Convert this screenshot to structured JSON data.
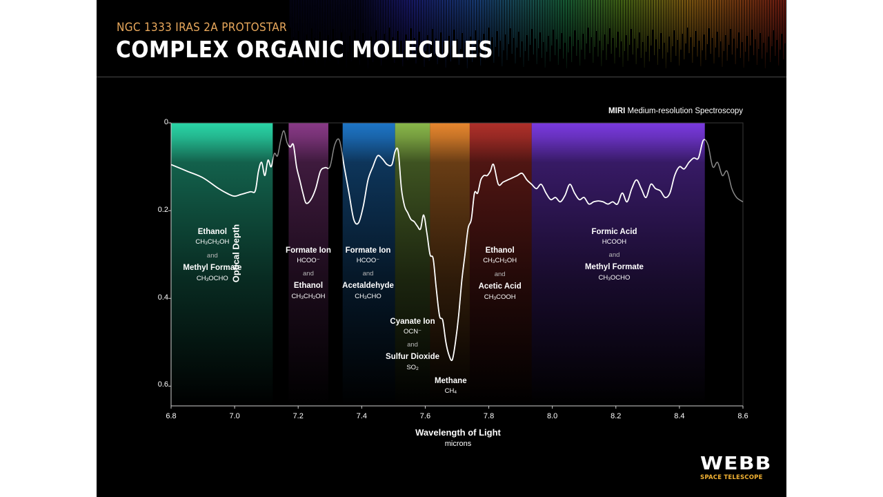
{
  "header": {
    "subtitle": "NGC 1333 IRAS 2A PROTOSTAR",
    "title": "COMPLEX ORGANIC MOLECULES"
  },
  "instrument": {
    "bold": "MIRI",
    "text": " Medium-resolution Spectroscopy"
  },
  "logo": {
    "word": "WEBB",
    "sub": "SPACE TELESCOPE",
    "sub_color": "#f2b233"
  },
  "colors": {
    "background": "#000000",
    "spectrum_line": "#ffffff",
    "spectrum_line_faded": "#8a8a8a",
    "subtitle": "#e8a85c"
  },
  "chart_data": {
    "type": "line",
    "title": "COMPLEX ORGANIC MOLECULES",
    "xlabel": "Wavelength of Light",
    "xunits": "microns",
    "ylabel": "Optical Depth",
    "xlim": [
      6.8,
      8.6
    ],
    "ylim": [
      0,
      0.645
    ],
    "y_inverted": true,
    "x_ticks": [
      "6.8",
      "7.0",
      "7.2",
      "7.4",
      "7.6",
      "7.8",
      "8.0",
      "8.2",
      "8.4",
      "8.6"
    ],
    "y_ticks": [
      "0",
      "0.2",
      "0.4",
      "0.6"
    ],
    "series": [
      {
        "name": "Optical Depth",
        "x": [
          6.8,
          6.85,
          6.9,
          6.95,
          6.98,
          7.0,
          7.02,
          7.05,
          7.065,
          7.075,
          7.085,
          7.095,
          7.105,
          7.115,
          7.125,
          7.135,
          7.145,
          7.155,
          7.165,
          7.175,
          7.185,
          7.195,
          7.205,
          7.215,
          7.225,
          7.24,
          7.255,
          7.27,
          7.285,
          7.3,
          7.315,
          7.33,
          7.345,
          7.36,
          7.375,
          7.39,
          7.405,
          7.42,
          7.435,
          7.45,
          7.465,
          7.48,
          7.495,
          7.505,
          7.515,
          7.525,
          7.535,
          7.545,
          7.555,
          7.565,
          7.575,
          7.585,
          7.595,
          7.605,
          7.615,
          7.625,
          7.635,
          7.645,
          7.655,
          7.665,
          7.675,
          7.685,
          7.695,
          7.705,
          7.715,
          7.725,
          7.735,
          7.745,
          7.755,
          7.765,
          7.775,
          7.785,
          7.795,
          7.805,
          7.815,
          7.83,
          7.845,
          7.86,
          7.875,
          7.89,
          7.905,
          7.92,
          7.935,
          7.95,
          7.965,
          7.98,
          7.995,
          8.01,
          8.025,
          8.04,
          8.055,
          8.07,
          8.085,
          8.1,
          8.115,
          8.13,
          8.145,
          8.16,
          8.175,
          8.19,
          8.205,
          8.22,
          8.235,
          8.25,
          8.265,
          8.28,
          8.295,
          8.31,
          8.325,
          8.34,
          8.355,
          8.37,
          8.385,
          8.4,
          8.415,
          8.43,
          8.445,
          8.46,
          8.475,
          8.49,
          8.505,
          8.52,
          8.535,
          8.55,
          8.565,
          8.58,
          8.6
        ],
        "values": [
          0.095,
          0.11,
          0.125,
          0.15,
          0.162,
          0.167,
          0.163,
          0.157,
          0.155,
          0.11,
          0.09,
          0.12,
          0.085,
          0.1,
          0.07,
          0.075,
          0.04,
          0.018,
          0.045,
          0.055,
          0.05,
          0.1,
          0.13,
          0.16,
          0.183,
          0.175,
          0.15,
          0.11,
          0.102,
          0.1,
          0.05,
          0.04,
          0.1,
          0.16,
          0.22,
          0.228,
          0.19,
          0.13,
          0.1,
          0.075,
          0.082,
          0.095,
          0.095,
          0.065,
          0.065,
          0.15,
          0.19,
          0.205,
          0.22,
          0.225,
          0.235,
          0.242,
          0.21,
          0.25,
          0.3,
          0.31,
          0.38,
          0.44,
          0.45,
          0.5,
          0.53,
          0.54,
          0.5,
          0.44,
          0.36,
          0.3,
          0.24,
          0.22,
          0.16,
          0.16,
          0.13,
          0.12,
          0.12,
          0.11,
          0.095,
          0.14,
          0.135,
          0.13,
          0.125,
          0.12,
          0.115,
          0.13,
          0.14,
          0.15,
          0.14,
          0.16,
          0.175,
          0.17,
          0.18,
          0.165,
          0.14,
          0.16,
          0.175,
          0.17,
          0.185,
          0.18,
          0.178,
          0.18,
          0.185,
          0.18,
          0.185,
          0.16,
          0.18,
          0.15,
          0.13,
          0.15,
          0.17,
          0.14,
          0.15,
          0.155,
          0.17,
          0.16,
          0.12,
          0.1,
          0.105,
          0.09,
          0.08,
          0.08,
          0.04,
          0.05,
          0.1,
          0.09,
          0.12,
          0.11,
          0.15,
          0.17,
          0.18
        ]
      }
    ],
    "bands": [
      {
        "x0": 6.8,
        "x1": 7.12,
        "color": "#2ad7a8",
        "label_x": 6.93,
        "label_y": 0.24,
        "molecules": [
          {
            "name": "Ethanol",
            "formula": [
              [
                "CH",
                "3"
              ],
              [
                "CH",
                "2"
              ],
              [
                "OH",
                ""
              ]
            ]
          },
          {
            "name": "Methyl Formate",
            "formula": [
              [
                "CH",
                "3"
              ],
              [
                "OCHO",
                ""
              ]
            ]
          }
        ]
      },
      {
        "x0": 7.17,
        "x1": 7.295,
        "color": "#8a3a88",
        "label_x": 7.232,
        "label_y": 0.283,
        "molecules": [
          {
            "name": "Formate Ion",
            "formula": [
              [
                "HCOO⁻",
                ""
              ]
            ]
          },
          {
            "name": "Ethanol",
            "formula": [
              [
                "CH",
                "3"
              ],
              [
                "CH",
                "2"
              ],
              [
                "OH",
                ""
              ]
            ]
          }
        ]
      },
      {
        "x0": 7.34,
        "x1": 7.505,
        "color": "#1e76c8",
        "label_x": 7.42,
        "label_y": 0.283,
        "molecules": [
          {
            "name": "Formate Ion",
            "formula": [
              [
                "HCOO⁻",
                ""
              ]
            ]
          },
          {
            "name": "Acetaldehyde",
            "formula": [
              [
                "CH",
                "3"
              ],
              [
                "CHO",
                ""
              ]
            ]
          }
        ]
      },
      {
        "x0": 7.505,
        "x1": 7.615,
        "color": "#8ab84a",
        "label_x": 7.56,
        "label_y": 0.445,
        "molecules": [
          {
            "name": "Cyanate Ion",
            "formula": [
              [
                "OCN⁻",
                ""
              ]
            ]
          },
          {
            "name": "Sulfur Dioxide",
            "formula": [
              [
                "SO",
                "2"
              ]
            ]
          }
        ]
      },
      {
        "x0": 7.615,
        "x1": 7.74,
        "color": "#e8872e",
        "label_x": 7.68,
        "label_y": 0.58,
        "molecules": [
          {
            "name": "Methane",
            "formula": [
              [
                "CH",
                "4"
              ]
            ]
          }
        ]
      },
      {
        "x0": 7.74,
        "x1": 7.935,
        "color": "#b0302a",
        "label_x": 7.835,
        "label_y": 0.283,
        "molecules": [
          {
            "name": "Ethanol",
            "formula": [
              [
                "CH",
                "3"
              ],
              [
                "CH",
                "2"
              ],
              [
                "OH",
                ""
              ]
            ]
          },
          {
            "name": "Acetic Acid",
            "formula": [
              [
                "CH",
                "3"
              ],
              [
                "COOH",
                ""
              ]
            ]
          }
        ]
      },
      {
        "x0": 7.935,
        "x1": 8.48,
        "color": "#7a3ae0",
        "label_x": 8.195,
        "label_y": 0.24,
        "molecules": [
          {
            "name": "Formic Acid",
            "formula": [
              [
                "HCOOH",
                ""
              ]
            ]
          },
          {
            "name": "Methyl Formate",
            "formula": [
              [
                "CH",
                "3"
              ],
              [
                "OCHO",
                ""
              ]
            ]
          }
        ]
      }
    ],
    "and_word": "and"
  }
}
